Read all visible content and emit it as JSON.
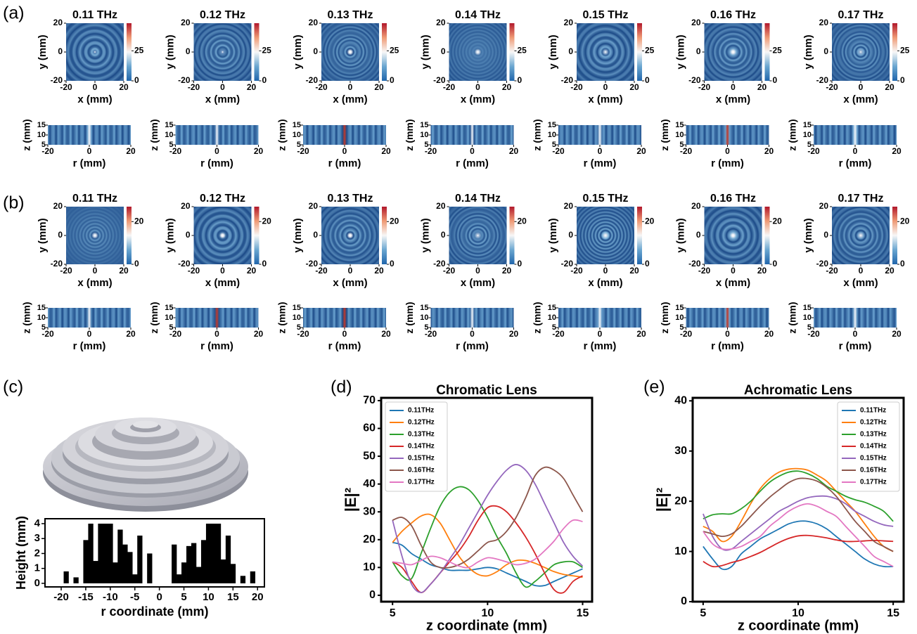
{
  "chart_data": [
    {
      "type": "heatmap-grid",
      "panel_label": "(a)",
      "titles": [
        "0.11 THz",
        "0.12 THz",
        "0.13 THz",
        "0.14 THz",
        "0.15 THz",
        "0.16 THz",
        "0.17 THz"
      ],
      "map": {
        "xlabel": "x (mm)",
        "ylabel": "y (mm)",
        "xlim": [
          -20,
          20
        ],
        "ylim": [
          -20,
          20
        ],
        "xticks": [
          -20,
          0,
          20
        ],
        "yticks": [
          -20,
          0,
          20
        ],
        "clim": [
          0,
          48
        ],
        "cticks": [
          0,
          25
        ]
      },
      "profile": {
        "xlabel": "r (mm)",
        "ylabel": "z (mm)",
        "xlim": [
          -20,
          20
        ],
        "ylim": [
          5,
          15
        ],
        "xticks": [
          -20,
          0,
          20
        ],
        "yticks": [
          5,
          10,
          15
        ]
      }
    },
    {
      "type": "heatmap-grid",
      "panel_label": "(b)",
      "titles": [
        "0.11 THz",
        "0.12 THz",
        "0.13 THz",
        "0.14 THz",
        "0.15 THz",
        "0.16 THz",
        "0.17 THz"
      ],
      "map": {
        "xlabel": "x (mm)",
        "ylabel": "y (mm)",
        "xlim": [
          -20,
          20
        ],
        "ylim": [
          -20,
          20
        ],
        "xticks": [
          -20,
          0,
          20
        ],
        "yticks": [
          -20,
          0,
          20
        ],
        "clim": [
          0,
          27
        ],
        "cticks": [
          0,
          20
        ]
      },
      "profile": {
        "xlabel": "r (mm)",
        "ylabel": "z (mm)",
        "xlim": [
          -20,
          20
        ],
        "ylim": [
          5,
          15
        ],
        "xticks": [
          -20,
          0,
          20
        ],
        "yticks": [
          5,
          10,
          15
        ]
      }
    },
    {
      "type": "bar",
      "panel_label": "(c)",
      "xlabel": "r coordinate (mm)",
      "ylabel": "Height (mm)",
      "color": "#000000",
      "x": [
        -20,
        -19,
        -18,
        -17,
        -16,
        -15,
        -14,
        -13,
        -12,
        -11,
        -10,
        -9,
        -8,
        -7,
        -6,
        -5,
        -4,
        -3,
        -2,
        -1,
        0,
        1,
        2,
        3,
        4,
        5,
        6,
        7,
        8,
        9,
        10,
        11,
        12,
        13,
        14,
        15,
        16,
        17,
        18,
        19,
        20
      ],
      "values": [
        0,
        0.8,
        0,
        0.4,
        0,
        2.9,
        4,
        1.5,
        4,
        4,
        4,
        1.4,
        3.6,
        2.6,
        2.1,
        0.6,
        3.2,
        0,
        2.0,
        0,
        0,
        0,
        0,
        2.6,
        0.6,
        1.4,
        2.5,
        2.7,
        1.1,
        2.9,
        4,
        4,
        4,
        1.6,
        3.2,
        1.3,
        0,
        0.5,
        0,
        0.8,
        0
      ],
      "xlim": [
        -23.3,
        21.4
      ],
      "ylim": [
        -0.24,
        4.33
      ],
      "xticks": [
        -20,
        -15,
        -10,
        -5,
        0,
        5,
        10,
        15,
        20
      ],
      "yticks": [
        0,
        1,
        2,
        3,
        4
      ]
    },
    {
      "type": "line",
      "panel_label": "(d)",
      "title": "Chromatic Lens",
      "xlabel": "z coordinate (mm)",
      "ylabel": "|E|²",
      "legend": "upper left",
      "x": [
        5,
        5.5,
        6,
        6.5,
        7,
        7.5,
        8,
        8.5,
        9,
        9.5,
        10,
        10.5,
        11,
        11.5,
        12,
        12.5,
        13,
        13.5,
        14,
        14.5,
        15
      ],
      "xlim": [
        4.4,
        15.5
      ],
      "ylim": [
        -2.3,
        71
      ],
      "xticks": [
        5,
        10,
        15
      ],
      "yticks": [
        0,
        10,
        20,
        30,
        40,
        50,
        60,
        70
      ],
      "series": [
        {
          "name": "0.11THz",
          "color": "#1f77b4",
          "values": [
            19,
            18,
            15,
            13,
            11,
            10,
            9,
            9,
            9,
            9.5,
            10,
            9.5,
            8,
            6.5,
            5,
            3.5,
            3.5,
            5,
            6.5,
            8,
            9.5
          ]
        },
        {
          "name": "0.12THz",
          "color": "#ff7f0e",
          "values": [
            19,
            23,
            26,
            28.5,
            29,
            26,
            20,
            14,
            10,
            7.5,
            7,
            8.5,
            11,
            12.5,
            12.5,
            11.5,
            10,
            8.5,
            7.5,
            7,
            6.5
          ]
        },
        {
          "name": "0.13THz",
          "color": "#2ca02c",
          "values": [
            12,
            7,
            6,
            15,
            24,
            32,
            37,
            39,
            38,
            34,
            28,
            21,
            15,
            8,
            3,
            5,
            8,
            11,
            12,
            12,
            10
          ]
        },
        {
          "name": "0.14THz",
          "color": "#d62728",
          "values": [
            12,
            10,
            5,
            1,
            4,
            8,
            12,
            16,
            21,
            27,
            31.5,
            32,
            30,
            26,
            21,
            15,
            8,
            2,
            1,
            5,
            7
          ]
        },
        {
          "name": "0.15THz",
          "color": "#9467bd",
          "values": [
            27,
            14,
            4,
            1,
            4,
            8,
            13,
            18,
            24,
            30,
            36,
            41,
            45,
            47,
            45,
            40,
            33,
            26,
            19,
            14,
            10.5
          ]
        },
        {
          "name": "0.16THz",
          "color": "#8c564b",
          "values": [
            27,
            28,
            25,
            18,
            12,
            10,
            10,
            11,
            13,
            16,
            19,
            20,
            23,
            28,
            35,
            43,
            46,
            45,
            42,
            36,
            30
          ]
        },
        {
          "name": "0.17THz",
          "color": "#e377c2",
          "values": [
            12,
            11.5,
            11,
            12.5,
            14,
            13.5,
            12,
            10.5,
            10,
            12,
            13.5,
            13,
            12,
            11,
            11.5,
            13,
            16,
            19.5,
            24,
            27,
            26.5
          ]
        }
      ]
    },
    {
      "type": "line",
      "panel_label": "(e)",
      "title": "Achromatic Lens",
      "xlabel": "z coordinate (mm)",
      "ylabel": "|E|²",
      "legend": "upper right",
      "x": [
        5,
        5.5,
        6,
        6.5,
        7,
        7.5,
        8,
        8.5,
        9,
        9.5,
        10,
        10.5,
        11,
        11.5,
        12,
        12.5,
        13,
        13.5,
        14,
        14.5,
        15
      ],
      "xlim": [
        4.45,
        15.55
      ],
      "ylim": [
        0,
        40.6
      ],
      "xticks": [
        5,
        10,
        15
      ],
      "yticks": [
        0,
        10,
        20,
        30,
        40
      ],
      "series": [
        {
          "name": "0.11THz",
          "color": "#1f77b4",
          "values": [
            11,
            8.5,
            6.5,
            7,
            9.5,
            11,
            12.5,
            13.5,
            14.5,
            15.5,
            16,
            16,
            15.5,
            14.5,
            13,
            11.5,
            10,
            8.5,
            7.5,
            7,
            7
          ]
        },
        {
          "name": "0.12THz",
          "color": "#ff7f0e",
          "values": [
            15,
            14,
            12,
            13,
            16,
            19.5,
            22.5,
            24.5,
            25.8,
            26.4,
            26.5,
            26.2,
            25.2,
            24,
            22,
            20,
            18,
            15.5,
            13,
            11,
            10
          ]
        },
        {
          "name": "0.13THz",
          "color": "#2ca02c",
          "values": [
            16.5,
            17.3,
            17.5,
            17.5,
            18.5,
            20,
            22,
            23.8,
            25,
            25.8,
            26,
            25.5,
            24.5,
            23,
            22,
            21,
            20.3,
            19.8,
            19,
            18,
            16
          ]
        },
        {
          "name": "0.14THz",
          "color": "#d62728",
          "values": [
            8,
            7,
            7.2,
            7.8,
            8.3,
            9,
            9.8,
            10.8,
            11.8,
            12.6,
            13.1,
            13.2,
            13,
            12.7,
            12.3,
            12,
            12,
            12.1,
            12.2,
            12.1,
            12
          ]
        },
        {
          "name": "0.15THz",
          "color": "#9467bd",
          "values": [
            17.5,
            13,
            10.5,
            10.5,
            12,
            13.5,
            15,
            16.5,
            18,
            19,
            20,
            20.7,
            21,
            21,
            20.5,
            19.5,
            18,
            17,
            16,
            15.3,
            15
          ]
        },
        {
          "name": "0.16THz",
          "color": "#8c564b",
          "values": [
            14,
            13.5,
            13,
            13.5,
            15,
            17,
            19,
            20.8,
            22.3,
            23.7,
            24.5,
            24.5,
            24,
            22.8,
            21,
            18.5,
            16,
            14,
            12,
            11,
            10
          ]
        },
        {
          "name": "0.17THz",
          "color": "#e377c2",
          "values": [
            14,
            11.5,
            10.5,
            10.5,
            11,
            12,
            13,
            15,
            16.5,
            18,
            19,
            19.5,
            19,
            18,
            17,
            15,
            13,
            11,
            9,
            8,
            7
          ]
        }
      ]
    }
  ]
}
